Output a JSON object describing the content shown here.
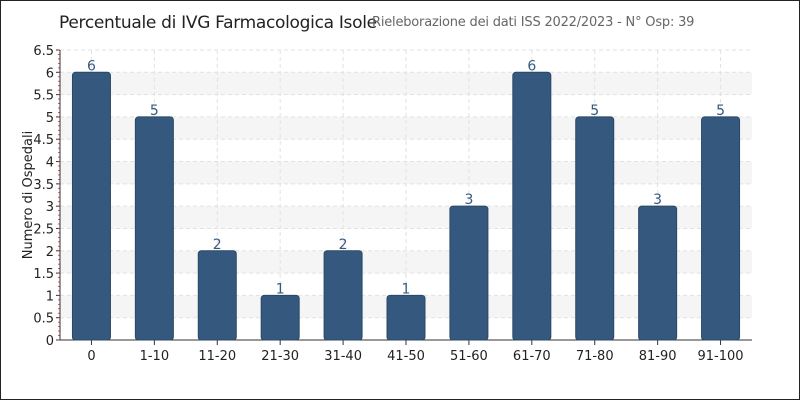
{
  "chart_data": {
    "type": "bar",
    "title": "Percentuale di IVG Farmacologica Isole",
    "subtitle": "Rieleborazione dei dati ISS 2022/2023 - N° Osp: 39",
    "xlabel": "",
    "ylabel": "Numero di Ospedali",
    "categories": [
      "0",
      "1-10",
      "11-20",
      "21-30",
      "31-40",
      "41-50",
      "51-60",
      "61-70",
      "71-80",
      "81-90",
      "91-100"
    ],
    "values": [
      6,
      5,
      2,
      1,
      2,
      1,
      3,
      6,
      5,
      3,
      5
    ],
    "ylim": [
      0,
      6.5
    ],
    "yticks": [
      "0",
      "0.5",
      "1",
      "1.5",
      "2",
      "2.5",
      "3",
      "3.5",
      "4",
      "4.5",
      "5",
      "5.5",
      "6",
      "6.5"
    ],
    "grid": true,
    "bar_color": "#35597e",
    "label_color": "#35597e"
  }
}
